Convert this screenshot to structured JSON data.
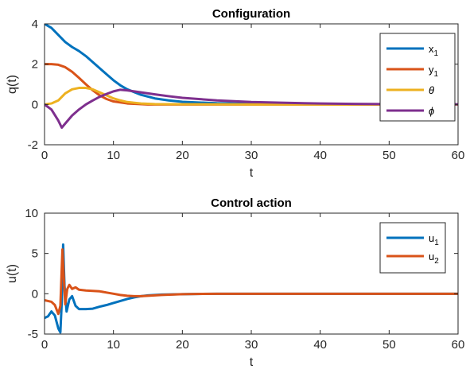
{
  "chart_data": [
    {
      "type": "line",
      "title": "Configuration",
      "xlabel": "t",
      "ylabel": "q(t)",
      "xlim": [
        0,
        60
      ],
      "ylim": [
        -2,
        4
      ],
      "xticks": [
        "0",
        "10",
        "20",
        "30",
        "40",
        "50",
        "60"
      ],
      "yticks": [
        "-2",
        "0",
        "2",
        "4"
      ],
      "legend_position": "top-right",
      "series": [
        {
          "name": "x",
          "name_sub": "1",
          "color": "#0072BD",
          "points": [
            [
              0,
              4
            ],
            [
              1,
              3.8
            ],
            [
              2,
              3.45
            ],
            [
              3,
              3.1
            ],
            [
              4,
              2.85
            ],
            [
              5,
              2.65
            ],
            [
              6,
              2.4
            ],
            [
              7,
              2.1
            ],
            [
              8,
              1.8
            ],
            [
              9,
              1.5
            ],
            [
              10,
              1.2
            ],
            [
              11,
              0.95
            ],
            [
              12,
              0.75
            ],
            [
              14,
              0.48
            ],
            [
              16,
              0.3
            ],
            [
              18,
              0.2
            ],
            [
              20,
              0.13
            ],
            [
              25,
              0.06
            ],
            [
              30,
              0.03
            ],
            [
              40,
              0.01
            ],
            [
              50,
              0.005
            ],
            [
              60,
              0
            ]
          ]
        },
        {
          "name": "y",
          "name_sub": "1",
          "color": "#D95319",
          "points": [
            [
              0,
              2
            ],
            [
              1,
              2
            ],
            [
              2,
              1.97
            ],
            [
              3,
              1.85
            ],
            [
              4,
              1.62
            ],
            [
              5,
              1.32
            ],
            [
              6,
              1.0
            ],
            [
              7,
              0.7
            ],
            [
              8,
              0.45
            ],
            [
              9,
              0.27
            ],
            [
              10,
              0.15
            ],
            [
              12,
              0.05
            ],
            [
              15,
              0
            ],
            [
              20,
              0
            ],
            [
              30,
              0
            ],
            [
              40,
              0
            ],
            [
              50,
              0
            ],
            [
              60,
              0
            ]
          ]
        },
        {
          "name": "θ",
          "name_sub": "",
          "color": "#EDB120",
          "points": [
            [
              0,
              0
            ],
            [
              1,
              0.05
            ],
            [
              2,
              0.2
            ],
            [
              3,
              0.55
            ],
            [
              4,
              0.75
            ],
            [
              5,
              0.82
            ],
            [
              6,
              0.82
            ],
            [
              7,
              0.75
            ],
            [
              8,
              0.6
            ],
            [
              9,
              0.45
            ],
            [
              10,
              0.3
            ],
            [
              11,
              0.2
            ],
            [
              12,
              0.12
            ],
            [
              14,
              0.05
            ],
            [
              16,
              0.02
            ],
            [
              20,
              0.01
            ],
            [
              30,
              0
            ],
            [
              40,
              0
            ],
            [
              50,
              0
            ],
            [
              60,
              0
            ]
          ]
        },
        {
          "name": "ϕ",
          "name_sub": "",
          "color": "#7E2F8E",
          "points": [
            [
              0,
              0
            ],
            [
              1,
              -0.25
            ],
            [
              2,
              -0.8
            ],
            [
              2.5,
              -1.15
            ],
            [
              3,
              -0.95
            ],
            [
              4,
              -0.55
            ],
            [
              5,
              -0.25
            ],
            [
              6,
              0
            ],
            [
              7,
              0.2
            ],
            [
              8,
              0.38
            ],
            [
              9,
              0.52
            ],
            [
              10,
              0.65
            ],
            [
              11,
              0.73
            ],
            [
              12,
              0.7
            ],
            [
              14,
              0.6
            ],
            [
              16,
              0.5
            ],
            [
              18,
              0.41
            ],
            [
              20,
              0.33
            ],
            [
              25,
              0.2
            ],
            [
              30,
              0.12
            ],
            [
              35,
              0.08
            ],
            [
              40,
              0.05
            ],
            [
              45,
              0.03
            ],
            [
              50,
              0.02
            ],
            [
              55,
              0.01
            ],
            [
              60,
              0.01
            ]
          ]
        }
      ]
    },
    {
      "type": "line",
      "title": "Control action",
      "xlabel": "t",
      "ylabel": "u(t)",
      "xlim": [
        0,
        60
      ],
      "ylim": [
        -5,
        10
      ],
      "xticks": [
        "0",
        "10",
        "20",
        "30",
        "40",
        "50",
        "60"
      ],
      "yticks": [
        "-5",
        "0",
        "5",
        "10"
      ],
      "legend_position": "top-right",
      "series": [
        {
          "name": "u",
          "name_sub": "1",
          "color": "#0072BD",
          "points": [
            [
              0,
              -3
            ],
            [
              0.5,
              -2.8
            ],
            [
              1,
              -2.2
            ],
            [
              1.5,
              -2.7
            ],
            [
              2,
              -4.3
            ],
            [
              2.3,
              -4.8
            ],
            [
              2.5,
              -1
            ],
            [
              2.7,
              6.1
            ],
            [
              2.9,
              1
            ],
            [
              3.2,
              -2.2
            ],
            [
              3.6,
              -0.7
            ],
            [
              4,
              -0.3
            ],
            [
              4.5,
              -1.5
            ],
            [
              5,
              -1.9
            ],
            [
              6,
              -1.9
            ],
            [
              7,
              -1.85
            ],
            [
              8,
              -1.6
            ],
            [
              9,
              -1.4
            ],
            [
              10,
              -1.15
            ],
            [
              11,
              -0.9
            ],
            [
              12,
              -0.65
            ],
            [
              13,
              -0.45
            ],
            [
              14,
              -0.3
            ],
            [
              15,
              -0.2
            ],
            [
              17,
              -0.1
            ],
            [
              20,
              -0.05
            ],
            [
              25,
              0
            ],
            [
              30,
              0
            ],
            [
              40,
              0
            ],
            [
              50,
              0
            ],
            [
              60,
              0
            ]
          ]
        },
        {
          "name": "u",
          "name_sub": "2",
          "color": "#D95319",
          "points": [
            [
              0,
              -0.8
            ],
            [
              1,
              -1
            ],
            [
              1.5,
              -1.4
            ],
            [
              2,
              -2.5
            ],
            [
              2.3,
              -1.5
            ],
            [
              2.6,
              5.5
            ],
            [
              2.8,
              2
            ],
            [
              3,
              -1.3
            ],
            [
              3.3,
              0.6
            ],
            [
              3.6,
              1.1
            ],
            [
              4,
              0.6
            ],
            [
              4.5,
              0.8
            ],
            [
              5,
              0.5
            ],
            [
              6,
              0.4
            ],
            [
              7,
              0.35
            ],
            [
              8,
              0.3
            ],
            [
              9,
              0.15
            ],
            [
              10,
              0
            ],
            [
              11,
              -0.15
            ],
            [
              12,
              -0.25
            ],
            [
              13,
              -0.3
            ],
            [
              14,
              -0.3
            ],
            [
              15,
              -0.25
            ],
            [
              17,
              -0.15
            ],
            [
              20,
              -0.05
            ],
            [
              25,
              0
            ],
            [
              30,
              0
            ],
            [
              40,
              0
            ],
            [
              50,
              0
            ],
            [
              60,
              0
            ]
          ]
        }
      ]
    }
  ]
}
